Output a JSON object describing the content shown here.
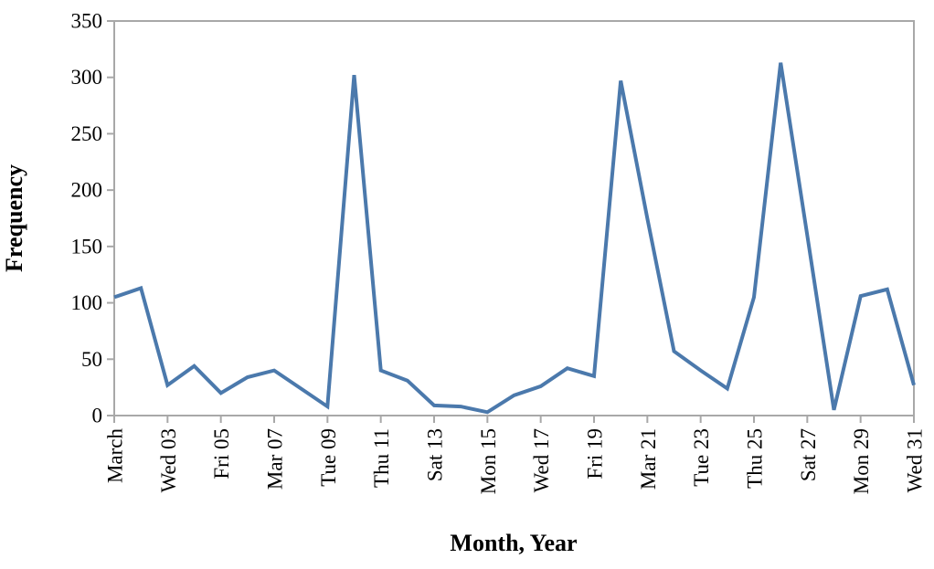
{
  "chart_data": {
    "type": "line",
    "title": "",
    "xlabel": "Month, Year",
    "ylabel": "Frequency",
    "legend": "none",
    "grid": false,
    "xlim": [
      1,
      31
    ],
    "ylim": [
      0,
      350
    ],
    "y_ticks": [
      0,
      50,
      100,
      150,
      200,
      250,
      300,
      350
    ],
    "x_tick_positions": [
      1,
      3,
      5,
      7,
      9,
      11,
      13,
      15,
      17,
      19,
      21,
      23,
      25,
      27,
      29,
      31
    ],
    "x_tick_labels": [
      "March",
      "Wed 03",
      "Fri 05",
      "Mar 07",
      "Tue 09",
      "Thu 11",
      "Sat 13",
      "Mon 15",
      "Wed 17",
      "Fri 19",
      "Mar 21",
      "Tue 23",
      "Thu 25",
      "Sat 27",
      "Mon 29",
      "Wed 31"
    ],
    "x": [
      1,
      2,
      3,
      4,
      5,
      6,
      7,
      8,
      9,
      10,
      11,
      12,
      13,
      14,
      15,
      16,
      17,
      18,
      19,
      20,
      21,
      22,
      23,
      24,
      25,
      26,
      27,
      28,
      29,
      30,
      31
    ],
    "values": [
      105,
      113,
      27,
      44,
      20,
      34,
      40,
      24,
      8,
      302,
      40,
      31,
      9,
      8,
      3,
      18,
      26,
      42,
      35,
      297,
      175,
      57,
      40,
      24,
      105,
      313,
      160,
      5,
      106,
      112,
      27
    ],
    "line_color": "#4b79ac",
    "axis_color": "#a8a8a8",
    "tick_label_color": "#000000"
  }
}
